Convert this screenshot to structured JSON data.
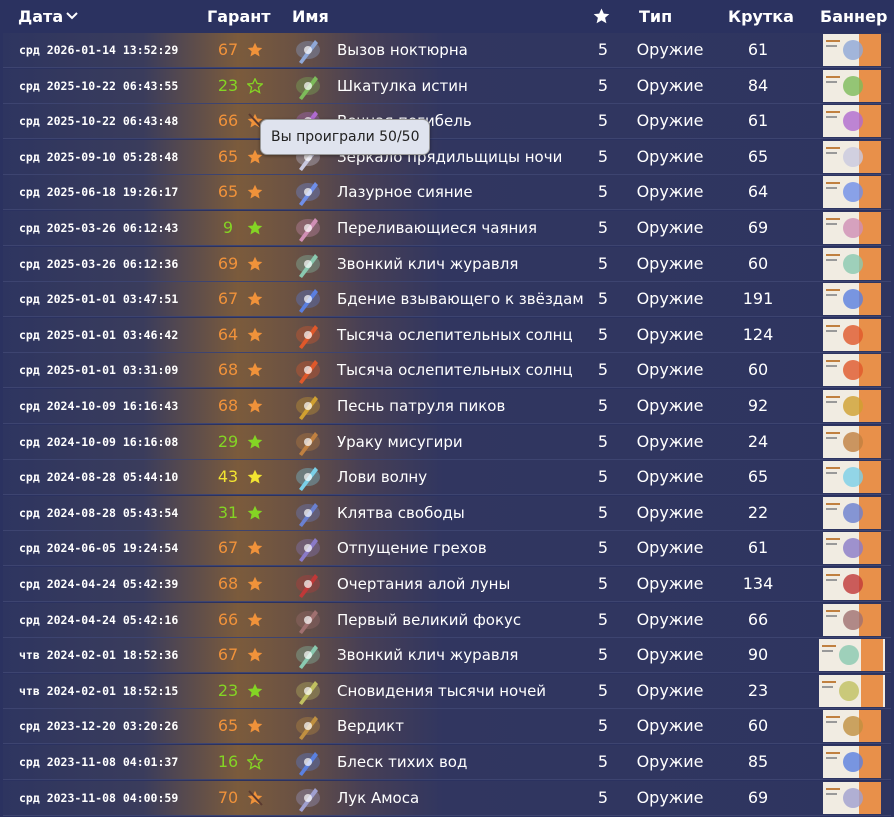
{
  "header": {
    "date": "Дата",
    "pity": "Гарант",
    "name": "Имя",
    "type": "Тип",
    "roll": "Крутка",
    "banner": "Баннер"
  },
  "tooltip": {
    "row": 2,
    "text": "Вы проиграли 50/50"
  },
  "rows": [
    {
      "date": "срд 2026-01-14 13:52:29",
      "pity": 67,
      "color": "#f0923a",
      "star": "filled",
      "name": "Вызов ноктюрна",
      "rarity": 5,
      "type": "Оружие",
      "roll": 61
    },
    {
      "date": "срд 2025-10-22 06:43:55",
      "pity": 23,
      "color": "#84d424",
      "star": "outline",
      "name": "Шкатулка истин",
      "rarity": 5,
      "type": "Оружие",
      "roll": 84
    },
    {
      "date": "срд 2025-10-22 06:43:48",
      "pity": 66,
      "color": "#f0923a",
      "star": "lost",
      "name": "Вечная погибель",
      "rarity": 5,
      "type": "Оружие",
      "roll": 61
    },
    {
      "date": "срд 2025-09-10 05:28:48",
      "pity": 65,
      "color": "#f0923a",
      "star": "filled",
      "name": "Зеркало прядильщицы ночи",
      "rarity": 5,
      "type": "Оружие",
      "roll": 65
    },
    {
      "date": "срд 2025-06-18 19:26:17",
      "pity": 65,
      "color": "#f0923a",
      "star": "filled",
      "name": "Лазурное сияние",
      "rarity": 5,
      "type": "Оружие",
      "roll": 64
    },
    {
      "date": "срд 2025-03-26 06:12:43",
      "pity": 9,
      "color": "#84d424",
      "star": "filled",
      "name": "Переливающиеся чаяния",
      "rarity": 5,
      "type": "Оружие",
      "roll": 69
    },
    {
      "date": "срд 2025-03-26 06:12:36",
      "pity": 69,
      "color": "#f0923a",
      "star": "filled",
      "name": "Звонкий клич журавля",
      "rarity": 5,
      "type": "Оружие",
      "roll": 60
    },
    {
      "date": "срд 2025-01-01 03:47:51",
      "pity": 67,
      "color": "#f0923a",
      "star": "filled",
      "name": "Бдение взывающего к звёздам",
      "rarity": 5,
      "type": "Оружие",
      "roll": 191
    },
    {
      "date": "срд 2025-01-01 03:46:42",
      "pity": 64,
      "color": "#f0923a",
      "star": "filled",
      "name": "Тысяча ослепительных солнц",
      "rarity": 5,
      "type": "Оружие",
      "roll": 124
    },
    {
      "date": "срд 2025-01-01 03:31:09",
      "pity": 68,
      "color": "#f0923a",
      "star": "filled",
      "name": "Тысяча ослепительных солнц",
      "rarity": 5,
      "type": "Оружие",
      "roll": 60
    },
    {
      "date": "срд 2024-10-09 16:16:43",
      "pity": 68,
      "color": "#f0923a",
      "star": "filled",
      "name": "Песнь патруля пиков",
      "rarity": 5,
      "type": "Оружие",
      "roll": 92
    },
    {
      "date": "срд 2024-10-09 16:16:08",
      "pity": 29,
      "color": "#84d424",
      "star": "filled",
      "name": "Ураку мисугири",
      "rarity": 5,
      "type": "Оружие",
      "roll": 24
    },
    {
      "date": "срд 2024-08-28 05:44:10",
      "pity": 43,
      "color": "#f2e431",
      "star": "filled",
      "name": "Лови волну",
      "rarity": 5,
      "type": "Оружие",
      "roll": 65
    },
    {
      "date": "срд 2024-08-28 05:43:54",
      "pity": 31,
      "color": "#84d424",
      "star": "filled",
      "name": "Клятва свободы",
      "rarity": 5,
      "type": "Оружие",
      "roll": 22
    },
    {
      "date": "срд 2024-06-05 19:24:54",
      "pity": 67,
      "color": "#f0923a",
      "star": "filled",
      "name": "Отпущение грехов",
      "rarity": 5,
      "type": "Оружие",
      "roll": 61
    },
    {
      "date": "срд 2024-04-24 05:42:39",
      "pity": 68,
      "color": "#f0923a",
      "star": "filled",
      "name": "Очертания алой луны",
      "rarity": 5,
      "type": "Оружие",
      "roll": 134
    },
    {
      "date": "срд 2024-04-24 05:42:16",
      "pity": 66,
      "color": "#f0923a",
      "star": "filled",
      "name": "Первый великий фокус",
      "rarity": 5,
      "type": "Оружие",
      "roll": 66
    },
    {
      "date": "чтв 2024-02-01 18:52:36",
      "pity": 67,
      "color": "#f0923a",
      "star": "filled",
      "name": "Звонкий клич журавля",
      "rarity": 5,
      "type": "Оружие",
      "roll": 90
    },
    {
      "date": "чтв 2024-02-01 18:52:15",
      "pity": 23,
      "color": "#84d424",
      "star": "filled",
      "name": "Сновидения тысячи ночей",
      "rarity": 5,
      "type": "Оружие",
      "roll": 23
    },
    {
      "date": "срд 2023-12-20 03:20:26",
      "pity": 65,
      "color": "#f0923a",
      "star": "filled",
      "name": "Вердикт",
      "rarity": 5,
      "type": "Оружие",
      "roll": 60
    },
    {
      "date": "срд 2023-11-08 04:01:37",
      "pity": 16,
      "color": "#84d424",
      "star": "outline",
      "name": "Блеск тихих вод",
      "rarity": 5,
      "type": "Оружие",
      "roll": 85
    },
    {
      "date": "срд 2023-11-08 04:00:59",
      "pity": 70,
      "color": "#f0923a",
      "star": "lost",
      "name": "Лук Амоса",
      "rarity": 5,
      "type": "Оружие",
      "roll": 69
    }
  ]
}
